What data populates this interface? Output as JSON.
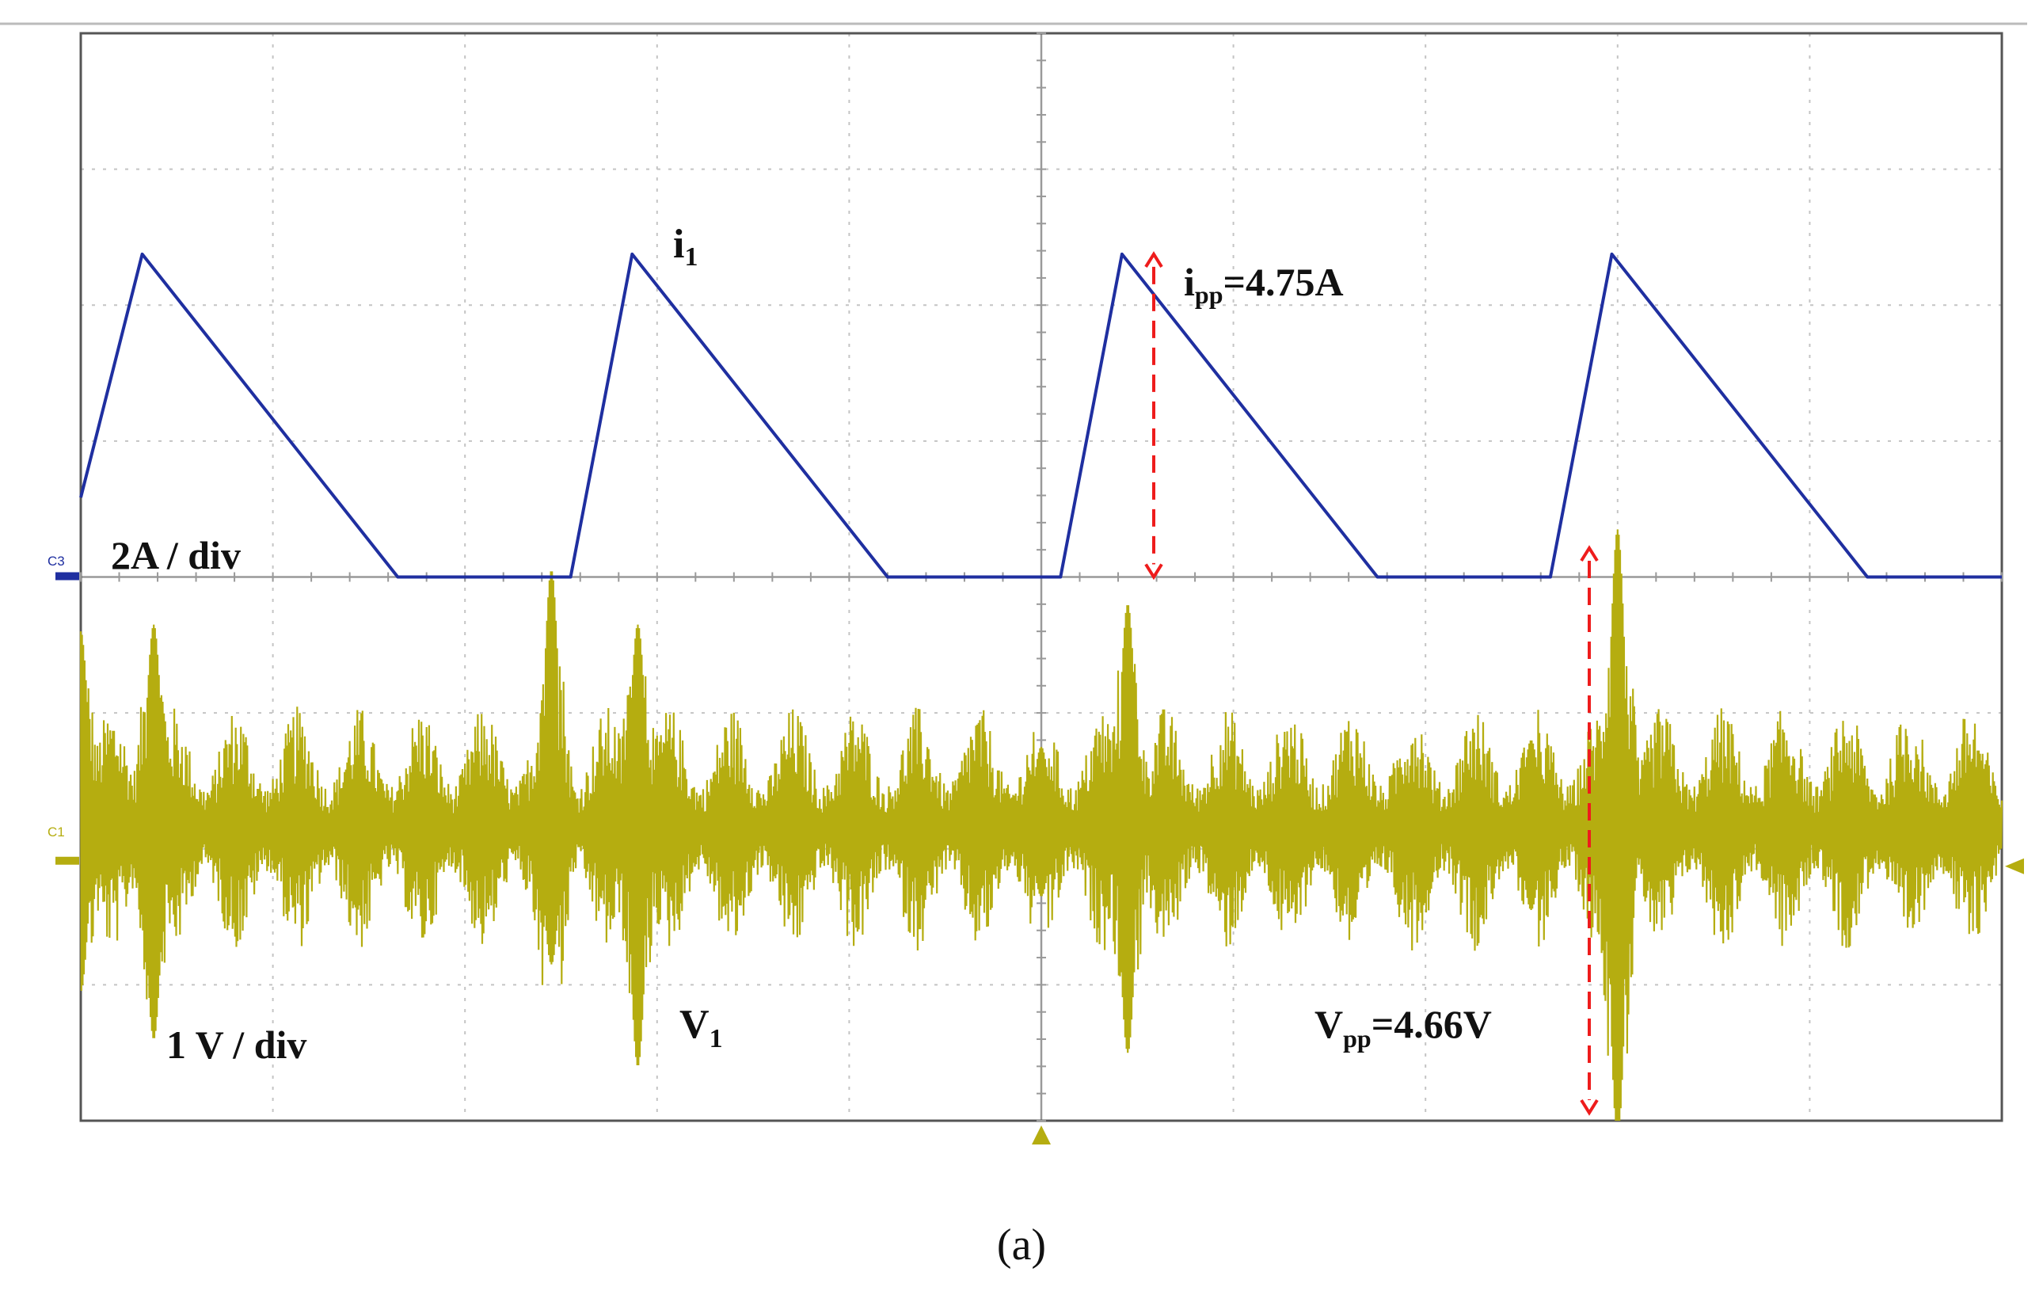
{
  "chart_data": {
    "type": "line",
    "grid": true,
    "grid_divisions": {
      "x": 10,
      "y": 8
    },
    "colors": {
      "current": "#1f2fa0",
      "voltage": "#b5ad10",
      "arrow": "#ee1c1c",
      "grid": "#bbbbbb",
      "frame": "#555555"
    },
    "channels": {
      "c3": {
        "label": "C3",
        "scale": "2A / div",
        "color": "#1f2fa0"
      },
      "c1": {
        "label": "C1",
        "scale": "1 V / div",
        "color": "#b5ad10"
      }
    },
    "series": [
      {
        "name_main": "i",
        "name_sub": "1",
        "channel": "c3",
        "unit": "A",
        "period_div": 2.55,
        "peak": 4.75,
        "points_div_A": [
          [
            0.0,
            1.17
          ],
          [
            0.32,
            4.75
          ],
          [
            1.65,
            0.0
          ],
          [
            2.45,
            0.0
          ],
          [
            2.55,
            0.0
          ],
          [
            2.87,
            4.75
          ],
          [
            4.2,
            0.0
          ],
          [
            5.0,
            0.0
          ],
          [
            5.1,
            0.0
          ],
          [
            5.42,
            4.75
          ],
          [
            6.75,
            0.0
          ],
          [
            7.55,
            0.0
          ],
          [
            7.65,
            0.0
          ],
          [
            7.97,
            4.75
          ],
          [
            9.3,
            0.0
          ],
          [
            10.0,
            0.0
          ]
        ]
      },
      {
        "name_main": "V",
        "name_sub": "1",
        "channel": "c1",
        "unit": "V",
        "peak_to_peak": 4.66,
        "noise_envelope_V": 0.9,
        "spikes_div_V": [
          [
            0.0,
            1.45,
            -1.2
          ],
          [
            0.38,
            1.5,
            -1.55
          ],
          [
            2.45,
            1.9,
            -1.0
          ],
          [
            2.9,
            1.5,
            -1.75
          ],
          [
            5.0,
            0.6,
            -0.5
          ],
          [
            5.45,
            1.65,
            -1.65
          ],
          [
            7.55,
            0.65,
            -0.6
          ],
          [
            8.0,
            2.2,
            -2.3
          ]
        ]
      }
    ],
    "annotations": {
      "i1_main": "i",
      "i1_sub": "1",
      "ipp_main": "i",
      "ipp_sub": "pp",
      "ipp_value": "=4.75A",
      "v1_main": "V",
      "v1_sub": "1",
      "vpp_main": "V",
      "vpp_sub": "pp",
      "vpp_value": "=4.66V",
      "current_scale": "2A / div",
      "voltage_scale": "1 V / div"
    },
    "caption": "(a)"
  }
}
